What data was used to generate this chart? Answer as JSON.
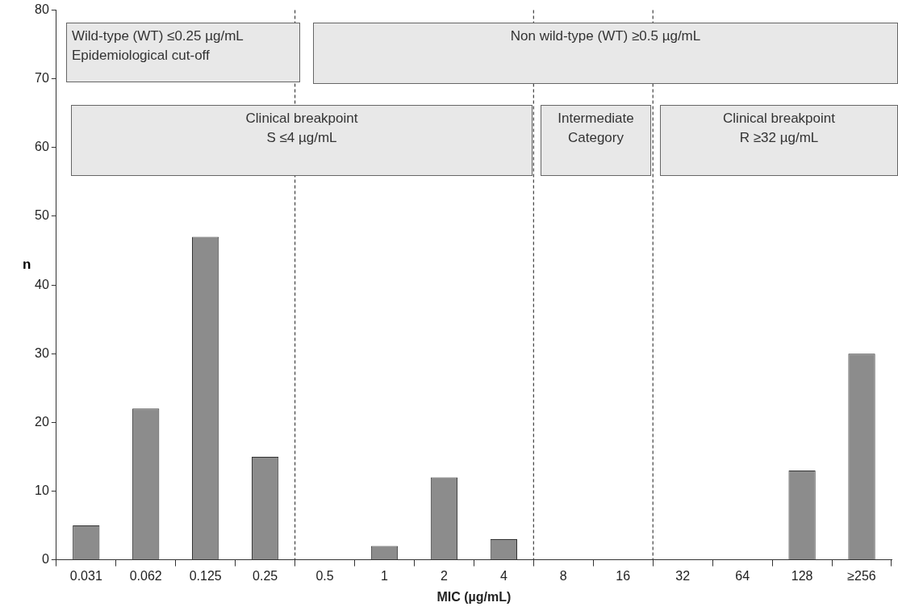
{
  "chart_data": {
    "type": "bar",
    "xlabel": "MIC (µg/mL)",
    "ylabel": "n",
    "categories": [
      "0.031",
      "0.062",
      "0.125",
      "0.25",
      "0.5",
      "1",
      "2",
      "4",
      "8",
      "16",
      "32",
      "64",
      "128",
      "≥256"
    ],
    "values": [
      5,
      22,
      47,
      15,
      0,
      2,
      12,
      3,
      0,
      0,
      0,
      0,
      13,
      30
    ],
    "color": "#8c8c8c",
    "ylim": [
      0,
      80
    ],
    "yticks": [
      0,
      10,
      20,
      30,
      40,
      50,
      60,
      70,
      80
    ],
    "grid": false,
    "legend": false,
    "annotations": [
      "Wild-type (WT) ≤0.25 µg/mL\nEpidemiological cut-off",
      "Non wild-type (WT) ≥0.5 µg/mL",
      "Clinical breakpoint\nS  ≤4 µg/mL",
      "Intermediate\nCategory",
      "Clinical breakpoint\nR  ≥32 µg/mL"
    ]
  }
}
